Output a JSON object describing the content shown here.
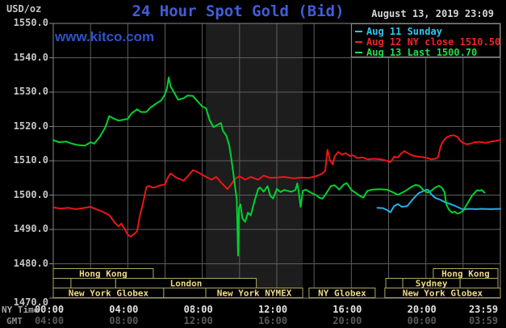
{
  "header": {
    "y_axis_unit": "USD/oz",
    "title": "24 Hour Spot Gold (Bid)",
    "timestamp": "August 13, 2019 23:09",
    "watermark": "www.kitco.com"
  },
  "legend": {
    "items": [
      {
        "label": "Aug 11 Sunday",
        "color": "#30c6ee"
      },
      {
        "label": "Aug 12 NY close 1510.50",
        "color": "#f02525"
      },
      {
        "label": "Aug 13 Last 1500.70",
        "color": "#25dd48"
      }
    ]
  },
  "axes": {
    "x_ny_label": "NY Time",
    "x_gmt_label": "GMT",
    "y_tick_labels": [
      "1550.0",
      "1540.0",
      "1530.0",
      "1520.0",
      "1510.0",
      "1500.0",
      "1490.0",
      "1480.0",
      "1470.0"
    ],
    "y_tick_values": [
      1550,
      1540,
      1530,
      1520,
      1510,
      1500,
      1490,
      1480,
      1470
    ],
    "x_ticks": [
      {
        "hour": 0,
        "ny": "00:00",
        "gmt": "04:00"
      },
      {
        "hour": 4,
        "ny": "04:00",
        "gmt": "08:00"
      },
      {
        "hour": 8,
        "ny": "08:00",
        "gmt": "12:00"
      },
      {
        "hour": 12,
        "ny": "12:00",
        "gmt": "16:00"
      },
      {
        "hour": 16,
        "ny": "16:00",
        "gmt": "20:00"
      },
      {
        "hour": 20,
        "ny": "20:00",
        "gmt": "00:00"
      },
      {
        "hour": 24,
        "ny": "23:59",
        "gmt": "03:59"
      }
    ],
    "x_gridline_hours": [
      0,
      2,
      4,
      6,
      8,
      10,
      12,
      14,
      16,
      18,
      20,
      22,
      24
    ]
  },
  "sessions": {
    "rows": [
      [
        {
          "label": "Hong Kong",
          "start": 0.0,
          "end": 5.37
        },
        {
          "label": "Hong Kong",
          "start": 20.4,
          "end": 23.87
        }
      ],
      [
        {
          "label": "",
          "start": 0.0,
          "end": 0.95
        },
        {
          "label": "",
          "start": 0.95,
          "end": 3.35
        },
        {
          "label": "London",
          "start": 3.35,
          "end": 10.9
        },
        {
          "label": "",
          "start": 17.85,
          "end": 18.76
        },
        {
          "label": "Sydney",
          "start": 18.76,
          "end": 21.84
        },
        {
          "label": "",
          "start": 21.84,
          "end": 23.87
        }
      ],
      [
        {
          "label": "New York Globex",
          "start": 0.0,
          "end": 5.93
        },
        {
          "label": "",
          "start": 5.93,
          "end": 8.19
        },
        {
          "label": "New York NYMEX",
          "start": 8.19,
          "end": 13.39
        },
        {
          "label": "NY Globex",
          "start": 13.73,
          "end": 17.28
        },
        {
          "label": "New York Globex",
          "start": 17.8,
          "end": 24.0
        }
      ]
    ]
  },
  "chart_data": {
    "type": "line",
    "title": "24 Hour Spot Gold (Bid)",
    "xlabel": "NY Time (hours)",
    "ylabel": "USD/oz",
    "x_range": [
      0,
      24
    ],
    "y_range": [
      1470,
      1550
    ],
    "grid": true,
    "legend_position": "top-right",
    "highlight_band_hours": [
      8.19,
      13.39
    ],
    "series": [
      {
        "name": "Aug 11 Sunday",
        "color": "#2bacе6",
        "points": [
          [
            17.4,
            1496.3
          ],
          [
            17.7,
            1496.2
          ],
          [
            18.0,
            1495.4
          ],
          [
            18.1,
            1495.0
          ],
          [
            18.3,
            1496.8
          ],
          [
            18.5,
            1497.4
          ],
          [
            18.7,
            1496.6
          ],
          [
            19.0,
            1496.8
          ],
          [
            19.3,
            1498.8
          ],
          [
            19.6,
            1500.5
          ],
          [
            19.9,
            1501.3
          ],
          [
            20.1,
            1501.6
          ],
          [
            20.3,
            1500.2
          ],
          [
            20.5,
            1499.2
          ],
          [
            20.8,
            1498.6
          ],
          [
            21.0,
            1498.0
          ],
          [
            21.3,
            1497.4
          ],
          [
            21.6,
            1496.8
          ],
          [
            22.0,
            1495.8
          ],
          [
            22.3,
            1496.0
          ],
          [
            22.7,
            1495.9
          ],
          [
            23.0,
            1496.0
          ],
          [
            23.5,
            1495.9
          ],
          [
            24.0,
            1496.0
          ]
        ]
      },
      {
        "name": "Aug 12 NY close 1510.50",
        "color": "#ee1515",
        "points": [
          [
            0,
            1496.4
          ],
          [
            0.4,
            1496.1
          ],
          [
            0.8,
            1496.3
          ],
          [
            1.2,
            1495.9
          ],
          [
            1.6,
            1496.2
          ],
          [
            2.0,
            1496.6
          ],
          [
            2.3,
            1495.9
          ],
          [
            2.6,
            1495.3
          ],
          [
            3.0,
            1494.2
          ],
          [
            3.3,
            1492.0
          ],
          [
            3.5,
            1490.9
          ],
          [
            3.65,
            1491.7
          ],
          [
            3.85,
            1489.9
          ],
          [
            4.0,
            1488.5
          ],
          [
            4.15,
            1487.9
          ],
          [
            4.35,
            1488.7
          ],
          [
            4.5,
            1489.5
          ],
          [
            4.65,
            1494.0
          ],
          [
            4.8,
            1497.2
          ],
          [
            5.0,
            1502.3
          ],
          [
            5.15,
            1502.7
          ],
          [
            5.3,
            1502.2
          ],
          [
            5.5,
            1502.3
          ],
          [
            5.7,
            1502.8
          ],
          [
            6.0,
            1503.1
          ],
          [
            6.15,
            1505.1
          ],
          [
            6.3,
            1506.3
          ],
          [
            6.6,
            1505.1
          ],
          [
            7.0,
            1504.2
          ],
          [
            7.25,
            1505.7
          ],
          [
            7.5,
            1507.3
          ],
          [
            7.75,
            1506.7
          ],
          [
            8.0,
            1505.9
          ],
          [
            8.25,
            1505.2
          ],
          [
            8.5,
            1504.5
          ],
          [
            8.75,
            1505.3
          ],
          [
            9.0,
            1503.7
          ],
          [
            9.15,
            1502.9
          ],
          [
            9.35,
            1501.8
          ],
          [
            9.5,
            1502.7
          ],
          [
            9.75,
            1504.7
          ],
          [
            10.0,
            1505.5
          ],
          [
            10.3,
            1504.5
          ],
          [
            10.6,
            1505.3
          ],
          [
            11.0,
            1504.5
          ],
          [
            11.3,
            1505.7
          ],
          [
            11.65,
            1505.0
          ],
          [
            12.0,
            1505.1
          ],
          [
            12.4,
            1505.3
          ],
          [
            12.9,
            1504.9
          ],
          [
            13.3,
            1505.1
          ],
          [
            13.7,
            1505.0
          ],
          [
            14.1,
            1505.5
          ],
          [
            14.4,
            1506.1
          ],
          [
            14.6,
            1507.1
          ],
          [
            14.72,
            1513.2
          ],
          [
            14.85,
            1510.2
          ],
          [
            15.0,
            1508.9
          ],
          [
            15.1,
            1511.3
          ],
          [
            15.3,
            1512.6
          ],
          [
            15.5,
            1511.8
          ],
          [
            15.7,
            1512.2
          ],
          [
            15.9,
            1511.4
          ],
          [
            16.1,
            1511.6
          ],
          [
            16.3,
            1510.8
          ],
          [
            16.6,
            1511.0
          ],
          [
            16.9,
            1510.4
          ],
          [
            17.2,
            1510.6
          ],
          [
            17.6,
            1510.4
          ],
          [
            17.9,
            1510.0
          ],
          [
            18.1,
            1509.6
          ],
          [
            18.3,
            1511.2
          ],
          [
            18.5,
            1511.0
          ],
          [
            18.7,
            1512.2
          ],
          [
            18.85,
            1512.8
          ],
          [
            19.1,
            1512.0
          ],
          [
            19.3,
            1511.5
          ],
          [
            19.6,
            1511.2
          ],
          [
            19.9,
            1511.0
          ],
          [
            20.1,
            1510.8
          ],
          [
            20.3,
            1510.4
          ],
          [
            20.5,
            1510.6
          ],
          [
            20.65,
            1511.0
          ],
          [
            20.78,
            1513.9
          ],
          [
            20.9,
            1515.5
          ],
          [
            21.1,
            1516.8
          ],
          [
            21.3,
            1517.3
          ],
          [
            21.5,
            1517.4
          ],
          [
            21.7,
            1517.0
          ],
          [
            21.85,
            1515.8
          ],
          [
            22.0,
            1515.2
          ],
          [
            22.2,
            1514.8
          ],
          [
            22.4,
            1515.0
          ],
          [
            22.6,
            1515.4
          ],
          [
            22.9,
            1515.5
          ],
          [
            23.2,
            1515.2
          ],
          [
            23.5,
            1515.6
          ],
          [
            23.75,
            1515.8
          ],
          [
            24.0,
            1516.1
          ]
        ]
      },
      {
        "name": "Aug 13 Last 1500.70",
        "color": "#00d22e",
        "points": [
          [
            0,
            1516.0
          ],
          [
            0.3,
            1515.4
          ],
          [
            0.7,
            1515.6
          ],
          [
            1.0,
            1515.0
          ],
          [
            1.3,
            1514.6
          ],
          [
            1.7,
            1514.4
          ],
          [
            2.0,
            1515.4
          ],
          [
            2.2,
            1515.0
          ],
          [
            2.5,
            1517.0
          ],
          [
            2.8,
            1519.8
          ],
          [
            3.0,
            1523.0
          ],
          [
            3.2,
            1522.4
          ],
          [
            3.5,
            1521.7
          ],
          [
            3.8,
            1522.0
          ],
          [
            4.0,
            1522.2
          ],
          [
            4.2,
            1523.8
          ],
          [
            4.5,
            1525.0
          ],
          [
            4.7,
            1524.2
          ],
          [
            5.0,
            1524.2
          ],
          [
            5.2,
            1525.4
          ],
          [
            5.5,
            1526.6
          ],
          [
            5.8,
            1527.6
          ],
          [
            6.0,
            1529.4
          ],
          [
            6.1,
            1531.0
          ],
          [
            6.2,
            1534.3
          ],
          [
            6.3,
            1531.6
          ],
          [
            6.5,
            1529.8
          ],
          [
            6.7,
            1527.8
          ],
          [
            7.0,
            1528.2
          ],
          [
            7.2,
            1529.0
          ],
          [
            7.5,
            1528.9
          ],
          [
            7.7,
            1527.6
          ],
          [
            8.0,
            1525.8
          ],
          [
            8.2,
            1525.3
          ],
          [
            8.4,
            1521.8
          ],
          [
            8.6,
            1519.8
          ],
          [
            8.8,
            1520.4
          ],
          [
            9.0,
            1521.0
          ],
          [
            9.1,
            1518.8
          ],
          [
            9.3,
            1517.2
          ],
          [
            9.45,
            1514.4
          ],
          [
            9.55,
            1511.0
          ],
          [
            9.65,
            1507.0
          ],
          [
            9.75,
            1502.7
          ],
          [
            9.85,
            1498.7
          ],
          [
            9.92,
            1482.4
          ],
          [
            9.97,
            1496.2
          ],
          [
            10.05,
            1497.3
          ],
          [
            10.15,
            1493.2
          ],
          [
            10.3,
            1492.2
          ],
          [
            10.45,
            1494.9
          ],
          [
            10.6,
            1494.1
          ],
          [
            10.8,
            1498.2
          ],
          [
            11.0,
            1501.8
          ],
          [
            11.1,
            1502.2
          ],
          [
            11.3,
            1501.0
          ],
          [
            11.5,
            1502.6
          ],
          [
            11.65,
            1499.8
          ],
          [
            11.8,
            1499.0
          ],
          [
            12.0,
            1501.8
          ],
          [
            12.2,
            1500.9
          ],
          [
            12.4,
            1501.5
          ],
          [
            12.6,
            1501.2
          ],
          [
            12.8,
            1501.0
          ],
          [
            13.0,
            1501.5
          ],
          [
            13.1,
            1503.4
          ],
          [
            13.2,
            1500.0
          ],
          [
            13.28,
            1496.6
          ],
          [
            13.4,
            1501.2
          ],
          [
            13.55,
            1501.6
          ],
          [
            13.8,
            1500.8
          ],
          [
            14.1,
            1500.0
          ],
          [
            14.3,
            1499.2
          ],
          [
            14.45,
            1499.0
          ],
          [
            14.65,
            1500.5
          ],
          [
            14.9,
            1502.6
          ],
          [
            15.1,
            1502.9
          ],
          [
            15.35,
            1501.6
          ],
          [
            15.6,
            1503.1
          ],
          [
            15.75,
            1503.5
          ],
          [
            16.0,
            1501.5
          ],
          [
            16.2,
            1500.8
          ],
          [
            16.5,
            1499.6
          ],
          [
            16.65,
            1499.3
          ],
          [
            16.85,
            1501.2
          ],
          [
            17.1,
            1501.6
          ],
          [
            17.5,
            1501.7
          ],
          [
            17.9,
            1501.6
          ],
          [
            18.2,
            1500.9
          ],
          [
            18.5,
            1500.1
          ],
          [
            18.9,
            1501.2
          ],
          [
            19.2,
            1502.3
          ],
          [
            19.45,
            1503.0
          ],
          [
            19.65,
            1502.7
          ],
          [
            19.9,
            1501.3
          ],
          [
            20.1,
            1500.7
          ],
          [
            20.3,
            1501.3
          ],
          [
            20.5,
            1502.2
          ],
          [
            20.7,
            1502.7
          ],
          [
            20.85,
            1502.2
          ],
          [
            21.0,
            1500.9
          ],
          [
            21.1,
            1497.2
          ],
          [
            21.25,
            1495.7
          ],
          [
            21.4,
            1494.9
          ],
          [
            21.55,
            1495.2
          ],
          [
            21.7,
            1494.6
          ],
          [
            21.85,
            1494.9
          ],
          [
            22.0,
            1495.4
          ],
          [
            22.15,
            1496.8
          ],
          [
            22.3,
            1498.2
          ],
          [
            22.45,
            1499.6
          ],
          [
            22.6,
            1500.6
          ],
          [
            22.75,
            1501.4
          ],
          [
            22.9,
            1501.3
          ],
          [
            23.0,
            1501.5
          ],
          [
            23.15,
            1500.7
          ]
        ]
      }
    ]
  },
  "colors": {
    "background": "#000000",
    "plot_border": "#878787",
    "gridline": "#5e5e5e",
    "highlight_band": "#1d1d1d",
    "session_border": "#b2a55f",
    "session_text": "#ecd985",
    "title_blue": "#3f5ed8",
    "aug11_line": "#2bace6",
    "aug12_line": "#ee1515",
    "aug13_line": "#00d22e"
  }
}
